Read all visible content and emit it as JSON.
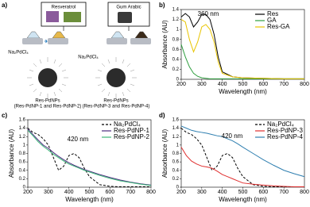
{
  "schematic": {
    "panel_label": "a)",
    "reagents": [
      "Resveratrol",
      "Gum Arabic"
    ],
    "precursors": [
      "Na₂PdCl₄",
      "Na₂PdCl₄"
    ],
    "products": [
      {
        "name": "Res-PdNPs",
        "members": "(Res-PdNP-1 and Res-PdNP-2)"
      },
      {
        "name": "Res-PdNPs",
        "members": "(Res-PdNP-3 and Res-PdNP-4)"
      }
    ]
  },
  "chart_data": [
    {
      "type": "line",
      "panel_label": "b)",
      "xlabel": "Wavelength (nm)",
      "ylabel": "Absorbance (AU)",
      "annotation": "360 nm",
      "x": [
        200,
        220,
        240,
        260,
        280,
        300,
        320,
        340,
        360,
        380,
        400,
        450,
        500,
        600,
        700,
        800
      ],
      "series": [
        {
          "name": "Res",
          "color": "#000000",
          "dash": "solid",
          "values": [
            1.25,
            1.32,
            1.25,
            1.05,
            1.15,
            1.3,
            1.3,
            1.2,
            0.9,
            0.45,
            0.15,
            0.05,
            0.03,
            0.02,
            0.01,
            0.01
          ]
        },
        {
          "name": "GA",
          "color": "#2e9e3e",
          "dash": "solid",
          "values": [
            0.7,
            0.45,
            0.25,
            0.12,
            0.06,
            0.03,
            0.02,
            0.01,
            0.01,
            0.01,
            0.01,
            0.01,
            0.01,
            0.01,
            0.01,
            0.01
          ]
        },
        {
          "name": "Res-GA",
          "color": "#e8c400",
          "dash": "solid",
          "values": [
            1.2,
            1.15,
            0.8,
            0.55,
            0.75,
            1.05,
            1.1,
            1.0,
            0.75,
            0.35,
            0.12,
            0.05,
            0.03,
            0.02,
            0.01,
            0.01
          ]
        }
      ],
      "xlim": [
        200,
        800
      ],
      "xticks": [
        200,
        300,
        400,
        500,
        600,
        700,
        800
      ],
      "ylim": [
        0,
        1.4
      ],
      "yticks": [
        0,
        0.2,
        0.4,
        0.6,
        0.8,
        1,
        1.2,
        1.4
      ],
      "legend": "upper right"
    },
    {
      "type": "line",
      "panel_label": "c)",
      "xlabel": "Wavelength (nm)",
      "ylabel": "Absorbance (AU)",
      "annotation": "420 nm",
      "x": [
        200,
        225,
        250,
        275,
        300,
        325,
        350,
        375,
        400,
        425,
        450,
        475,
        500,
        550,
        600,
        650,
        700,
        750,
        800
      ],
      "series": [
        {
          "name": "Na₂PdCl₄",
          "color": "#000000",
          "dash": "dashed",
          "values": [
            1.4,
            1.3,
            1.25,
            1.15,
            1.0,
            0.7,
            0.4,
            0.5,
            0.75,
            0.8,
            0.7,
            0.45,
            0.25,
            0.06,
            0.02,
            0.01,
            0.01,
            0.01,
            0.01
          ]
        },
        {
          "name": "Res-PdNP-1",
          "color": "#4b2d7f",
          "dash": "solid",
          "values": [
            1.38,
            1.25,
            1.12,
            1.0,
            0.92,
            0.82,
            0.73,
            0.65,
            0.58,
            0.52,
            0.47,
            0.42,
            0.38,
            0.3,
            0.23,
            0.17,
            0.12,
            0.08,
            0.05
          ]
        },
        {
          "name": "Res-PdNP-2",
          "color": "#3cb878",
          "dash": "solid",
          "values": [
            1.35,
            1.22,
            1.08,
            0.97,
            0.88,
            0.78,
            0.7,
            0.62,
            0.55,
            0.5,
            0.45,
            0.4,
            0.36,
            0.28,
            0.21,
            0.15,
            0.11,
            0.07,
            0.04
          ]
        }
      ],
      "xlim": [
        200,
        800
      ],
      "xticks": [
        200,
        300,
        400,
        500,
        600,
        700,
        800
      ],
      "ylim": [
        0,
        1.6
      ],
      "yticks": [
        0,
        0.2,
        0.4,
        0.6,
        0.8,
        1,
        1.2,
        1.4,
        1.6
      ],
      "legend": "upper right"
    },
    {
      "type": "line",
      "panel_label": "d)",
      "xlabel": "Wavelength (nm)",
      "ylabel": "Absorbance (AU)",
      "annotation": "420 nm",
      "x": [
        200,
        225,
        250,
        275,
        300,
        325,
        350,
        375,
        400,
        425,
        450,
        475,
        500,
        550,
        600,
        650,
        700,
        750,
        800
      ],
      "series": [
        {
          "name": "Na₂PdCl₄",
          "color": "#000000",
          "dash": "dashed",
          "values": [
            1.4,
            1.3,
            1.25,
            1.15,
            1.0,
            0.7,
            0.4,
            0.5,
            0.75,
            0.8,
            0.7,
            0.45,
            0.25,
            0.06,
            0.02,
            0.01,
            0.01,
            0.01,
            0.01
          ]
        },
        {
          "name": "Res-PdNP-3",
          "color": "#e03030",
          "dash": "solid",
          "values": [
            0.95,
            0.75,
            0.62,
            0.55,
            0.5,
            0.48,
            0.45,
            0.38,
            0.3,
            0.25,
            0.2,
            0.15,
            0.1,
            0.07,
            0.05,
            0.03,
            0.02,
            0.01,
            0.01
          ]
        },
        {
          "name": "Res-PdNP-4",
          "color": "#2f7fb0",
          "dash": "solid",
          "values": [
            1.45,
            1.4,
            1.35,
            1.32,
            1.3,
            1.28,
            1.25,
            1.22,
            1.2,
            1.15,
            1.1,
            1.03,
            0.95,
            0.8,
            0.65,
            0.52,
            0.4,
            0.32,
            0.25
          ]
        }
      ],
      "xlim": [
        200,
        800
      ],
      "xticks": [
        200,
        300,
        400,
        500,
        600,
        700,
        800
      ],
      "ylim": [
        0,
        1.6
      ],
      "yticks": [
        0,
        0.2,
        0.4,
        0.6,
        0.8,
        1,
        1.2,
        1.4,
        1.6
      ],
      "legend": "upper right"
    }
  ]
}
